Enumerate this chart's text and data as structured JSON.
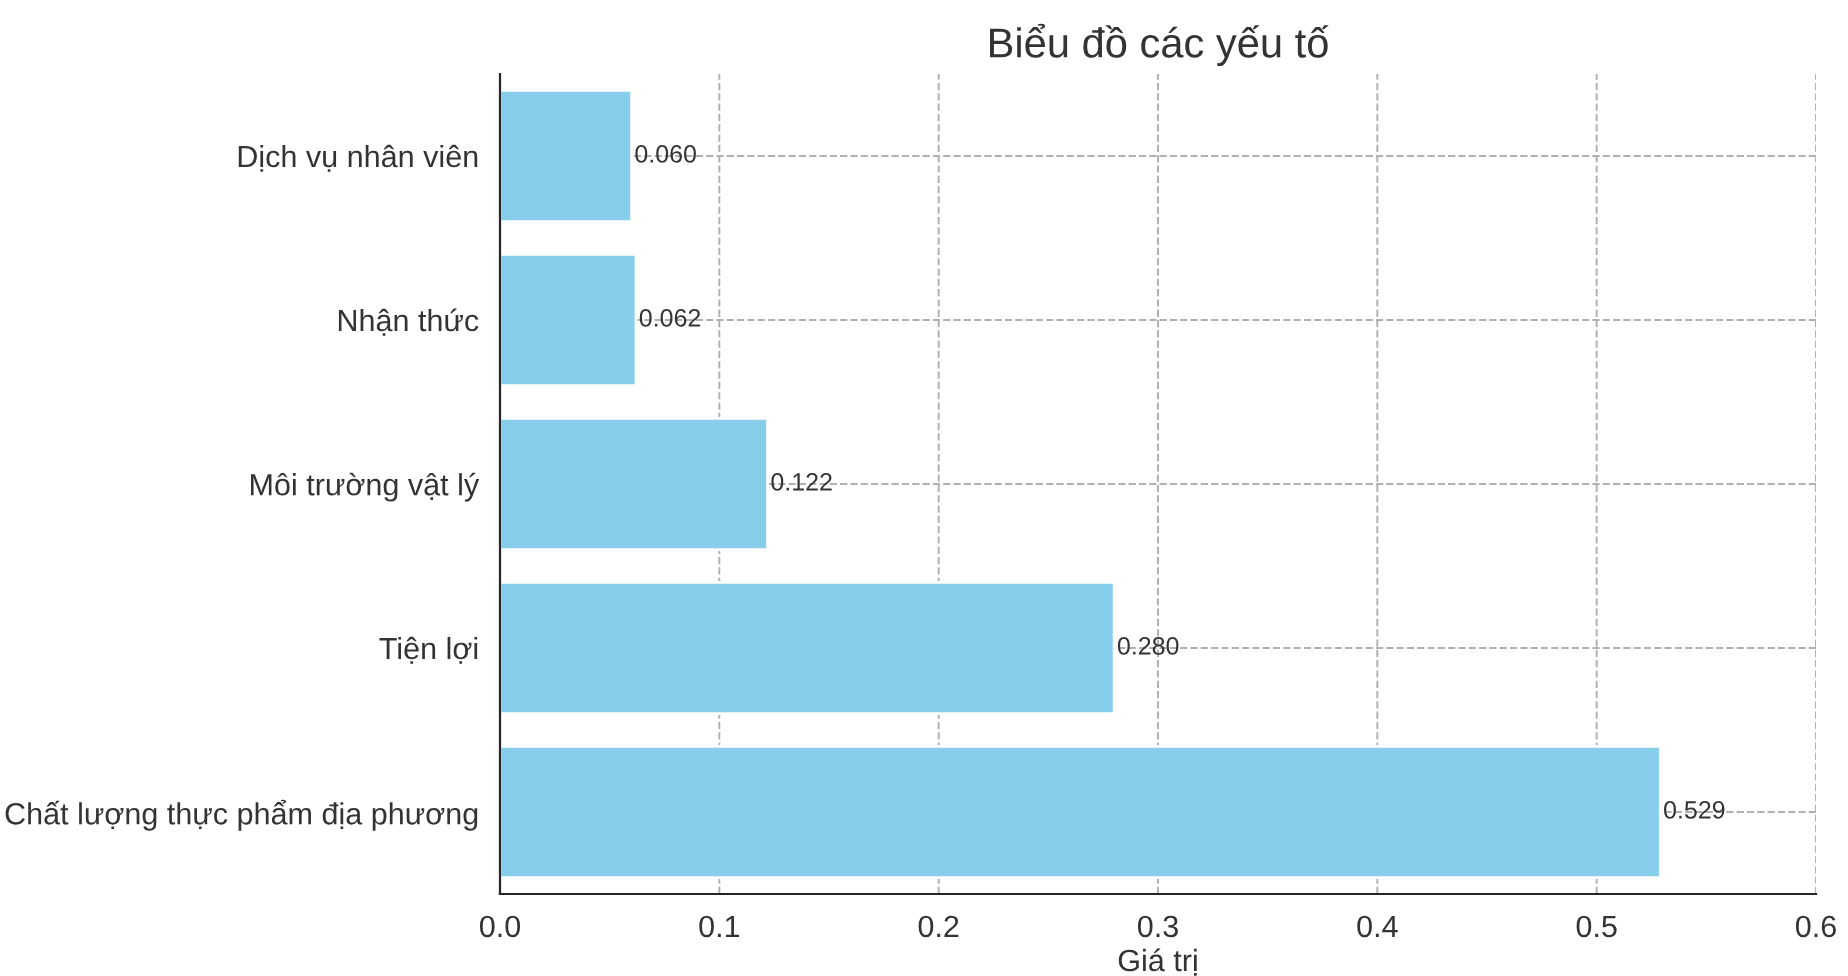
{
  "chart_data": {
    "type": "bar",
    "orientation": "horizontal",
    "title": "Biểu đồ các yếu tố",
    "xlabel": "Giá trị",
    "categories": [
      "Dịch vụ nhân viên",
      "Nhận thức",
      "Môi trường vật lý",
      "Tiện lợi",
      "Chất lượng thực phẩm địa phương"
    ],
    "values": [
      0.06,
      0.062,
      0.122,
      0.28,
      0.529
    ],
    "value_labels": [
      "0.060",
      "0.062",
      "0.122",
      "0.280",
      "0.529"
    ],
    "color": "#87ceeb",
    "xlim": [
      0,
      0.6
    ],
    "xticks": [
      {
        "value": 0,
        "label": "0.0"
      },
      {
        "value": 0.1,
        "label": "0.1"
      },
      {
        "value": 0.2,
        "label": "0.2"
      },
      {
        "value": 0.3,
        "label": "0.3"
      },
      {
        "value": 0.4,
        "label": "0.4"
      },
      {
        "value": 0.5,
        "label": "0.5"
      },
      {
        "value": 0.6,
        "label": "0.6"
      }
    ],
    "grid": true
  }
}
